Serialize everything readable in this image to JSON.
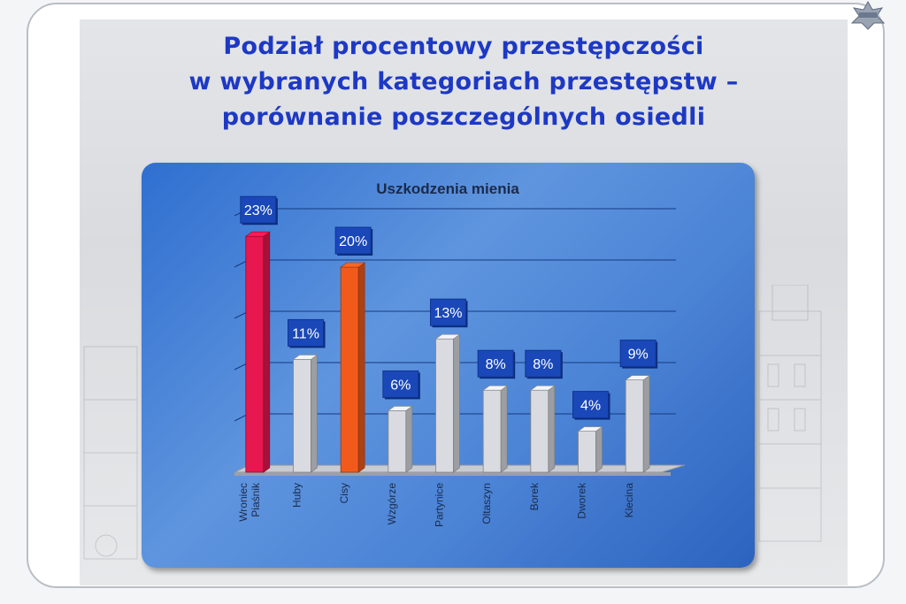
{
  "slide": {
    "title_lines": [
      "Podział procentowy przestępczości",
      "w wybranych kategoriach przestępstw –",
      "porównanie poszczególnych osiedli"
    ]
  },
  "chart_data": {
    "type": "bar",
    "title": "Uszkodzenia mienia",
    "categories": [
      "Wroniec\nPiaśnik",
      "Huby",
      "Cisy",
      "Wzgórze",
      "Partynice",
      "Oltaszyn",
      "Borek",
      "Dworek",
      "Klecina"
    ],
    "values": [
      23,
      11,
      20,
      6,
      13,
      8,
      8,
      4,
      9
    ],
    "value_labels": [
      "23%",
      "11%",
      "20%",
      "6%",
      "13%",
      "8%",
      "8%",
      "4%",
      "9%"
    ],
    "ylim": [
      0,
      25
    ],
    "grid": true,
    "legend": "none",
    "colors": {
      "highlight_red": "#e8174f",
      "highlight_orange": "#f25a1c",
      "default_bar": "#d9dbe0",
      "label_box": "#1a48b8"
    },
    "bar_color_keys": [
      "highlight_red",
      "default_bar",
      "highlight_orange",
      "default_bar",
      "default_bar",
      "default_bar",
      "default_bar",
      "default_bar",
      "default_bar"
    ]
  }
}
